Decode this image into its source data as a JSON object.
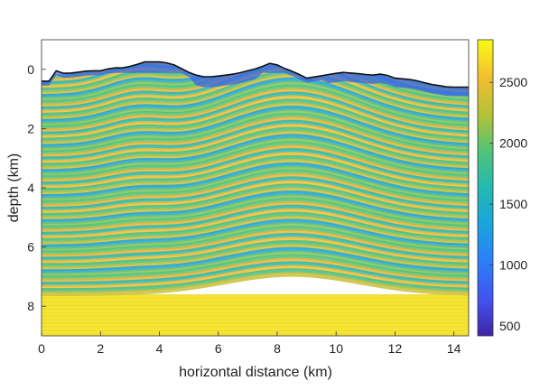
{
  "chart_data": {
    "type": "heatmap",
    "title": "",
    "xlabel": "horizontal distance (km)",
    "ylabel": "depth (km)",
    "xlim": [
      0,
      14.5
    ],
    "ylim": [
      9,
      -1
    ],
    "y_reversed": true,
    "x_ticks": [
      0,
      2,
      4,
      6,
      8,
      10,
      12,
      14
    ],
    "y_ticks": [
      0,
      2,
      4,
      6,
      8
    ],
    "colormap": "parula",
    "colorbar": {
      "range": [
        420,
        2850
      ],
      "ticks": [
        500,
        1000,
        1500,
        2000,
        2500
      ]
    },
    "surface_profile": {
      "x": [
        0,
        0.3,
        0.5,
        0.8,
        1.2,
        1.6,
        2.0,
        2.4,
        2.8,
        3.2,
        3.5,
        4.0,
        4.4,
        4.7,
        5.0,
        5.4,
        5.8,
        6.2,
        6.6,
        7.0,
        7.4,
        7.7,
        7.9,
        8.2,
        8.6,
        9.0,
        9.6,
        10.2,
        10.8,
        11.2,
        11.6,
        12.0,
        12.6,
        13.2,
        13.8,
        14.5
      ],
      "depth": [
        0.4,
        0.4,
        0.05,
        0.15,
        0.1,
        0.05,
        0.05,
        -0.05,
        -0.05,
        -0.15,
        -0.25,
        -0.25,
        -0.2,
        -0.05,
        0.1,
        0.25,
        0.25,
        0.2,
        0.15,
        0.05,
        -0.05,
        -0.2,
        -0.2,
        -0.05,
        0.1,
        0.3,
        0.2,
        0.1,
        0.15,
        0.2,
        0.15,
        0.3,
        0.35,
        0.5,
        0.6,
        0.6
      ]
    },
    "velocity_zones": [
      {
        "top_depth": 0.0,
        "bottom_depth": 0.6,
        "velocity": 1300
      },
      {
        "top_depth": 0.6,
        "bottom_depth": 7.6,
        "velocity": 2200
      },
      {
        "top_depth": 7.6,
        "bottom_depth": 9.0,
        "velocity": 2750
      }
    ]
  }
}
